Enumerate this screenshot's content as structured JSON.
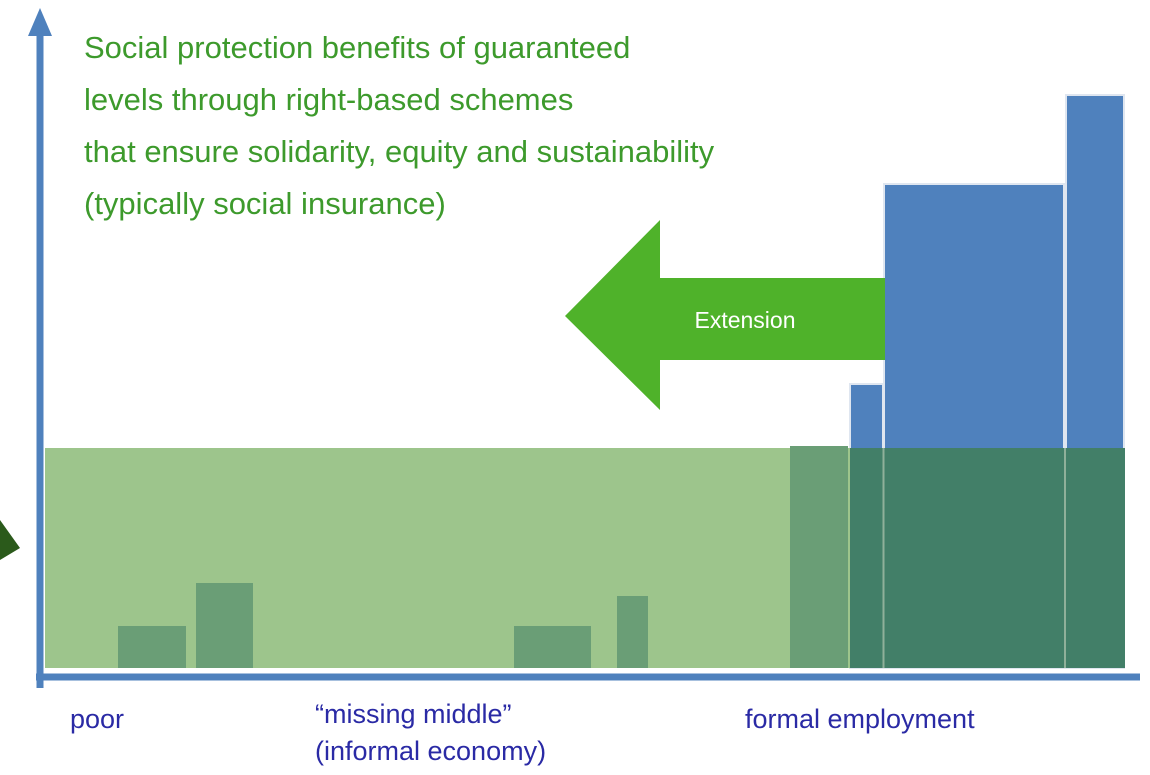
{
  "title_lines": [
    "Social protection benefits of guaranteed",
    "levels through right-based schemes",
    "that ensure solidarity, equity and sustainability",
    "(typically social insurance)"
  ],
  "arrow_label": "Extension",
  "x_labels": {
    "poor": "poor",
    "missing_middle": [
      "“missing middle”",
      "(informal economy)"
    ],
    "formal": "formal employment"
  }
}
